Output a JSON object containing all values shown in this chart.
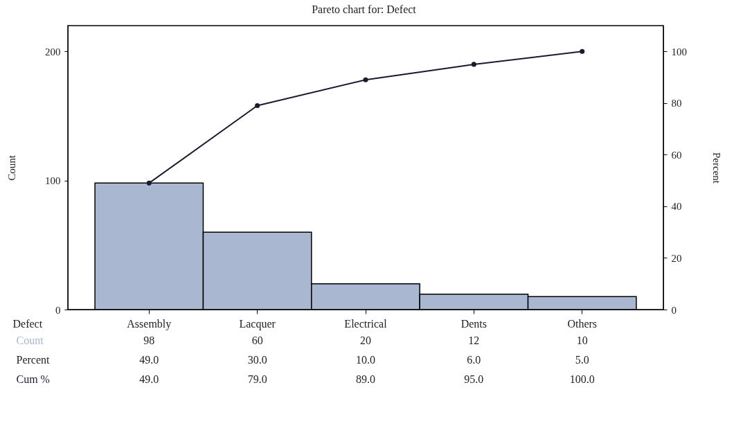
{
  "chart_data": {
    "type": "bar",
    "title": "Pareto chart for: Defect",
    "xlabel": "Defect",
    "ylabel": "Count",
    "y2label": "Percent",
    "categories": [
      "Assembly",
      "Lacquer",
      "Electrical",
      "Dents",
      "Others"
    ],
    "series": [
      {
        "name": "Count",
        "color": "#a9b7d0",
        "values": [
          98,
          60,
          20,
          12,
          10
        ],
        "value_labels": [
          "98",
          "60",
          "20",
          "12",
          "10"
        ]
      },
      {
        "name": "Cum %",
        "type": "line",
        "axis": "y2",
        "color": "#1a1a2e",
        "values": [
          49,
          79,
          89,
          95,
          100
        ],
        "value_labels": [
          "49.0",
          "79.0",
          "89.0",
          "95.0",
          "100.0"
        ]
      }
    ],
    "annotations": [
      "Percent",
      "49.0",
      "30.0",
      "10.0",
      "6.0",
      "5.0"
    ],
    "ylim": [
      0,
      220
    ],
    "yticks": [
      0,
      100,
      200
    ],
    "y2lim": [
      0,
      110
    ],
    "y2ticks": [
      0,
      20,
      40,
      60,
      80,
      100
    ],
    "marker": "circle",
    "grid": false,
    "legend": false
  }
}
